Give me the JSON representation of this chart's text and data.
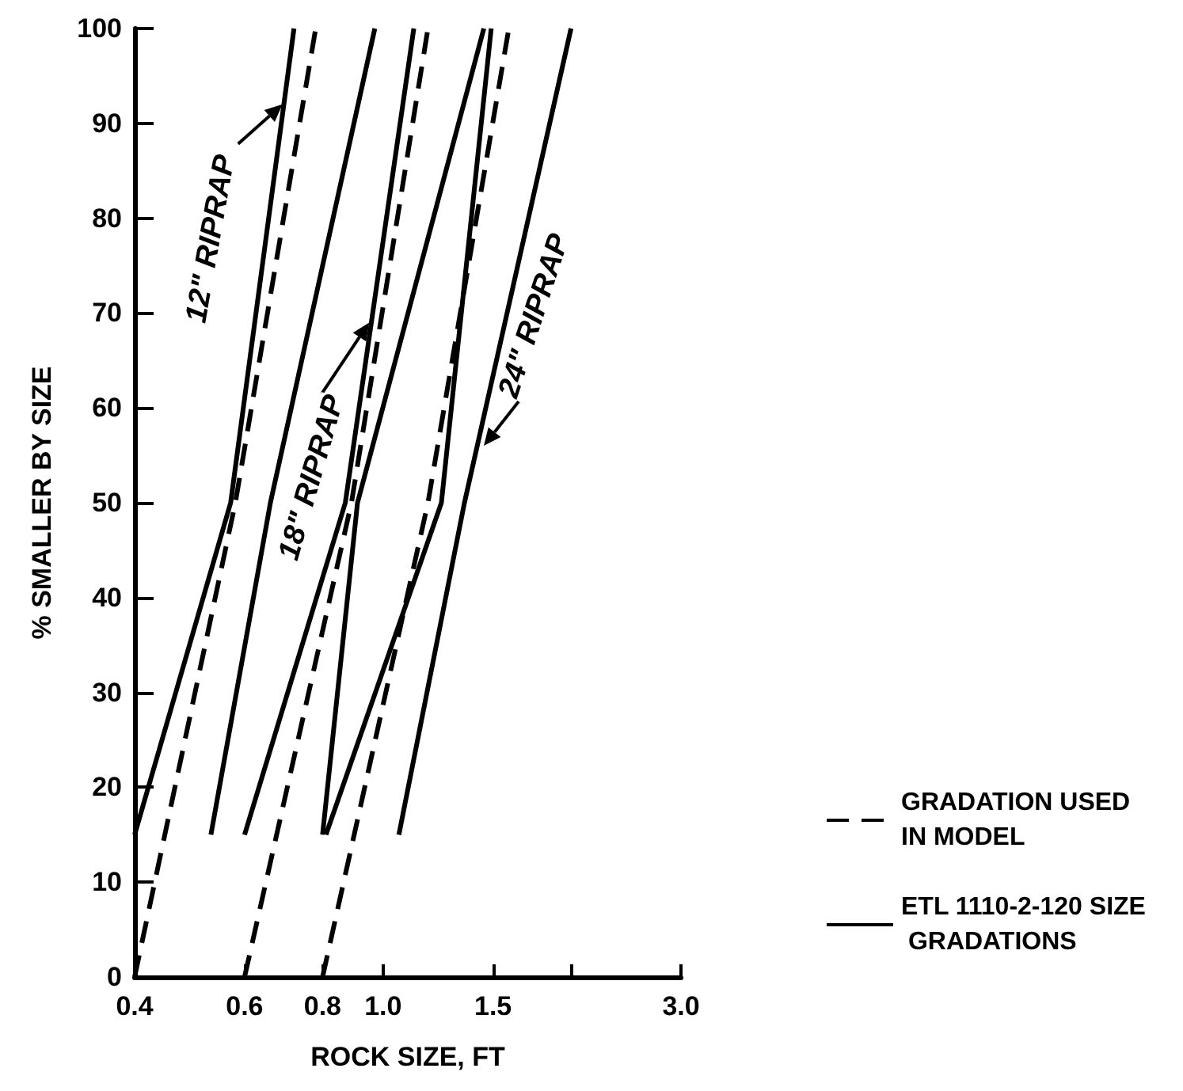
{
  "chart_data": {
    "type": "line",
    "xlabel": "ROCK SIZE, FT",
    "ylabel": "% SMALLER BY SIZE",
    "log": "x",
    "xlim": [
      0.4,
      3.0
    ],
    "xticks": [
      0.4,
      0.6,
      0.8,
      {
        "value": 1,
        "label": "1.0"
      },
      1.5,
      {
        "value": 2,
        "label": null
      },
      {
        "value": 3,
        "label": "3.0"
      }
    ],
    "ylim": [
      0,
      100
    ],
    "yticks": [
      0,
      10,
      20,
      30,
      40,
      50,
      60,
      70,
      80,
      90,
      100
    ],
    "grid": false,
    "legend": "right",
    "marker": "none",
    "series": [
      {
        "name": "GRADATION USED IN MODEL",
        "color": "#000000",
        "line_style": "dashed",
        "x": [
          0.4,
          0.58,
          0.78
        ],
        "values": [
          0,
          50,
          100
        ]
      },
      {
        "color": "#000000",
        "line_style": "dashed",
        "x": [
          0.6,
          0.89,
          1.18
        ],
        "values": [
          0,
          50,
          100
        ]
      },
      {
        "color": "#000000",
        "line_style": "dashed",
        "x": [
          0.8,
          1.18,
          1.59
        ],
        "values": [
          0,
          50,
          100
        ]
      },
      {
        "name": "ETL 1110-2-120 SIZE GRADATIONS",
        "color": "#000000",
        "line_style": "solid",
        "x": [
          0.4,
          0.57,
          0.72
        ],
        "values": [
          15,
          50,
          100
        ]
      },
      {
        "color": "#000000",
        "line_style": "solid",
        "x": [
          0.53,
          0.66,
          0.97
        ],
        "values": [
          15,
          50,
          100
        ]
      },
      {
        "color": "#000000",
        "line_style": "solid",
        "x": [
          0.6,
          0.87,
          1.12
        ],
        "values": [
          15,
          50,
          100
        ]
      },
      {
        "color": "#000000",
        "line_style": "solid",
        "x": [
          0.8,
          0.91,
          1.45
        ],
        "values": [
          15,
          50,
          100
        ]
      },
      {
        "color": "#000000",
        "line_style": "solid",
        "x": [
          0.81,
          1.24,
          1.49
        ],
        "values": [
          15,
          50,
          100
        ]
      },
      {
        "color": "#000000",
        "line_style": "solid",
        "x": [
          1.06,
          1.35,
          2.0
        ],
        "values": [
          15,
          50,
          100
        ]
      }
    ],
    "annotations": [
      {
        "text": "12\" RIPRAP",
        "x": 0.69,
        "y": 92
      },
      {
        "text": "18\" RIPRAP",
        "x": 0.95,
        "y": 69
      },
      {
        "text": "24\" RIPRAP",
        "x": 1.45,
        "y": 56
      }
    ]
  }
}
